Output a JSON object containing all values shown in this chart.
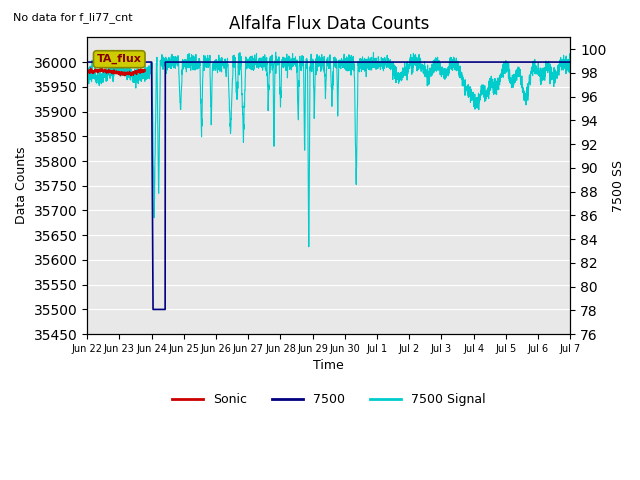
{
  "title": "Alfalfa Flux Data Counts",
  "subtitle": "No data for f_li77_cnt",
  "xlabel": "Time",
  "ylabel_left": "Data Counts",
  "ylabel_right": "7500 SS",
  "ylim_left": [
    35450,
    36050
  ],
  "ylim_right": [
    76,
    101
  ],
  "yticks_left": [
    35450,
    35500,
    35550,
    35600,
    35650,
    35700,
    35750,
    35800,
    35850,
    35900,
    35950,
    36000
  ],
  "yticks_right": [
    76,
    78,
    80,
    82,
    84,
    86,
    88,
    90,
    92,
    94,
    96,
    98,
    100
  ],
  "bg_color": "#e8e8e8",
  "annotation_text": "TA_flux",
  "annotation_bg": "#cccc00",
  "annotation_edge": "#888800",
  "sonic_color": "#cc0000",
  "li7500_color": "#000080",
  "signal_color": "#00cccc",
  "grid_color": "#ffffff",
  "figsize": [
    6.4,
    4.8
  ],
  "dpi": 100
}
